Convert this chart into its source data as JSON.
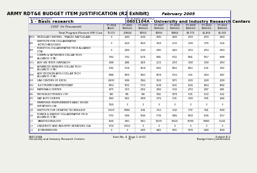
{
  "title": "ARMY RDT&E BUDGET ITEM JUSTIFICATION (R2 Exhibit)",
  "date": "February 2005",
  "budget_activity_label": "BUDGET ACTIVITY",
  "budget_activity": "1 - Basic research",
  "program_element_label": "PE NUMBER AND TITLE",
  "program_element": "0601104A - University and Industry Research Centers",
  "cost_label": "COST  (In Thousands)",
  "col_headers": [
    "FY 2004\nActual",
    "FY 2005\nEstimate",
    "FY 2006\nEstimate",
    "FY 2007\nEstimate",
    "FY 2008\nEstimate",
    "FY 2009\nEstimate",
    "FY 2010\nEstimate",
    "FY 2011\nEstimate"
  ],
  "total_row_label": "Total Program Element (PE) Cost",
  "total_row_values": [
    "75,572",
    "109664",
    "81955",
    "81992",
    "82864",
    "83,770",
    "85,469",
    "85,924"
  ],
  "rows": [
    {
      "pe": "H004",
      "label": "MODULAR CENTERS - TRADOC BATTLELABS",
      "values": [
        "0",
        "4060",
        "2500",
        "2993",
        "2849",
        "2750",
        "2750",
        "2950"
      ],
      "two_line": false
    },
    {
      "pe": "H05",
      "label": "INSTITUTE FOR COLLABORATIVE\nBIOTECHNOLOGIES",
      "values": [
        "0",
        "4620",
        "6620",
        "7020",
        "7130",
        "7200",
        "7378",
        "7524"
      ],
      "two_line": true
    },
    {
      "pe": "H09",
      "label": "ROBOTICS-COLLABORATIVE TECH ALLIANCE\n(CTA)",
      "values": [
        "0",
        "2400",
        "2540",
        "2993",
        "2849",
        "2750",
        "2750",
        "2950"
      ],
      "two_line": true
    },
    {
      "pe": "H50",
      "label": "COMMS & NETWORKS COLLAB TECH\nALLIANCE (CTA)",
      "values": [
        "7902",
        "7762",
        "6178",
        "6681",
        "6722",
        "6841",
        "5017",
        "6498"
      ],
      "two_line": true
    },
    {
      "pe": "I553",
      "label": "ADV SW INTER (SWREACH)",
      "values": [
        "4088",
        "2484",
        "2418",
        "2116",
        "2750",
        "3000",
        "3000",
        "2950"
      ],
      "two_line": false
    },
    {
      "pe": "I454",
      "label": "ADVANCED SENSORS COLLAB TECH\nALLIANCE (CTA)",
      "values": [
        "5182",
        "5126",
        "5518",
        "6302",
        "6852",
        "6852",
        "7124",
        "7262"
      ],
      "two_line": true
    },
    {
      "pe": "I458",
      "label": "ADV DECISION ARCH COLLAB TECH\nALLIANCE (CTA)",
      "values": [
        "5888",
        "5850",
        "5803",
        "6078",
        "6754",
        "7101",
        "7050",
        "7407"
      ],
      "two_line": true
    },
    {
      "pe": "H59",
      "label": "UAV CENTERS OF EXCEL",
      "values": [
        "20693",
        "6286",
        "1964",
        "1620",
        "1973",
        "2030",
        "2049",
        "2090"
      ],
      "two_line": false
    },
    {
      "pe": "I462",
      "label": "ELECTROMECHANYPEROTARY",
      "values": [
        "5850",
        "5031",
        "5710",
        "6138",
        "6332",
        "6126",
        "6454",
        "6582"
      ],
      "two_line": false
    },
    {
      "pe": "I664",
      "label": "MATERIALS CENTER",
      "values": [
        "2975",
        "3015",
        "2854",
        "2864",
        "3140",
        "2750",
        "2807",
        "2861"
      ],
      "two_line": false
    },
    {
      "pe": "H65",
      "label": "MICROELECTRONICS CTR",
      "values": [
        "938",
        "681",
        "988",
        "1041",
        "1078",
        "1191",
        "1120",
        "1142"
      ],
      "two_line": false
    },
    {
      "pe": "H73",
      "label": "NAT AUTO CENTER",
      "values": [
        "7840",
        "7422",
        "2958",
        "3074",
        "3191",
        "3000",
        "3091",
        "3266"
      ],
      "two_line": false
    },
    {
      "pe": "H80",
      "label": "IMMERSIVE ENVIRONMENTS BASIC VISION\nINITIATIVES (CA)",
      "values": [
        "1040",
        "0",
        "0",
        "0",
        "0",
        "0",
        "0",
        "0"
      ],
      "two_line": true
    },
    {
      "pe": "J08",
      "label": "INSTITUTE FOR CREATIVE TECHNOLOGY",
      "values": [
        "11659",
        "10882",
        "7184",
        "7310",
        "7540",
        "7797",
        "7941",
        "8090"
      ],
      "two_line": false
    },
    {
      "pe": "J09",
      "label": "POWER & ENERGY COLLABORATIVE TECH\nALLIANCE (CTA)",
      "values": [
        "5702",
        "5496",
        "5646",
        "5736",
        "5984",
        "6018",
        "6106",
        "6157"
      ],
      "two_line": true
    },
    {
      "pe": "J12",
      "label": "NANOTECHNOLOGY",
      "values": [
        "8606",
        "9061",
        "9952",
        "10278",
        "10020",
        "10789",
        "10880",
        "11204"
      ],
      "two_line": false
    },
    {
      "pe": "J13",
      "label": "UNIVERSITY AND INDUSTRY INITIATIVES (CA)",
      "values": [
        "6718",
        "13550",
        "0",
        "0",
        "0",
        "0",
        "0",
        "0"
      ],
      "two_line": false
    },
    {
      "pe": "J16",
      "label": "ECYBERMISSION",
      "values": [
        "0",
        "0",
        "4800",
        "4962",
        "5001",
        "5078",
        "5480",
        "5590"
      ],
      "two_line": false
    }
  ],
  "footer_left1": "0601104A",
  "footer_left2": "University and Industry Research Centers",
  "footer_mid1": "Item No. 4  Page 1 of 61",
  "footer_mid2": "73",
  "footer_right1": "Exhibit R-2",
  "footer_right2": "Budget Item Justification",
  "bg_color": "#f0f0ea",
  "border_color": "#5555aa",
  "line_color": "#999999",
  "header_fill": "#e0e0e0",
  "total_fill": "#ebebeb"
}
